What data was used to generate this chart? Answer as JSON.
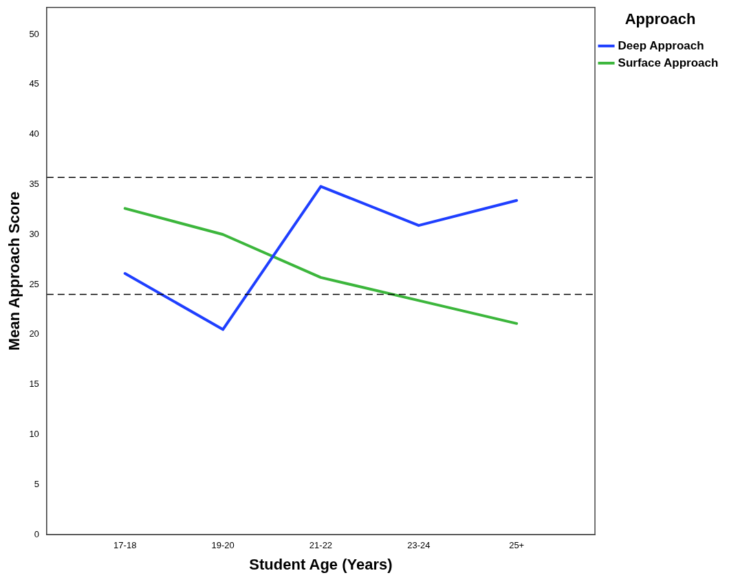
{
  "chart_data": {
    "type": "line",
    "xlabel": "Student Age (Years)",
    "ylabel": "Mean Approach Score",
    "legend_title": "Approach",
    "categories": [
      "17-18",
      "19-20",
      "21-22",
      "23-24",
      "25+"
    ],
    "series": [
      {
        "name": "Deep Approach",
        "color": "#1f3fff",
        "values": [
          26.1,
          20.5,
          34.8,
          30.9,
          33.4
        ]
      },
      {
        "name": "Surface Approach",
        "color": "#3cb63c",
        "values": [
          32.6,
          30.0,
          25.7,
          23.4,
          21.1
        ]
      }
    ],
    "ylim": [
      0,
      52.7
    ],
    "yticks": [
      0,
      5,
      10,
      15,
      20,
      25,
      30,
      35,
      40,
      45,
      50
    ],
    "ref_lines": [
      {
        "axis": "y",
        "value": 35.7,
        "color": "#000000",
        "line_style": "dashed"
      },
      {
        "axis": "y",
        "value": 24.0,
        "color": "#000000",
        "line_style": "dashed"
      }
    ],
    "grid": false,
    "legend": "top right",
    "marker": "none",
    "line_style": "solid"
  }
}
